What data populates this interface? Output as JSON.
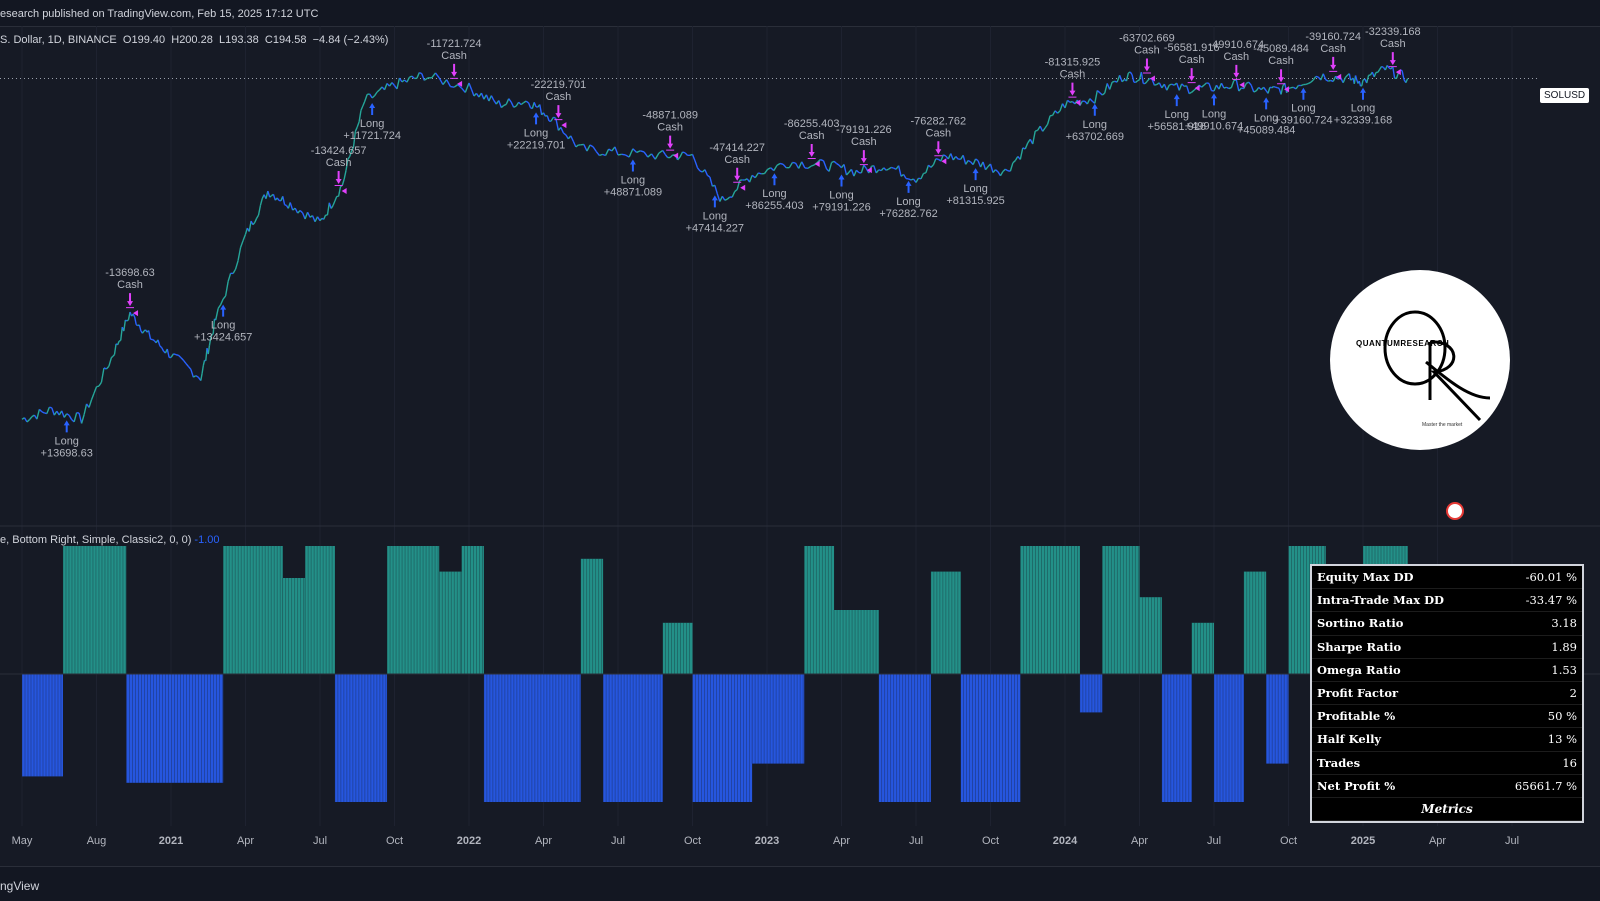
{
  "header": {
    "published": "esearch published on TradingView.com, Feb 15, 2025 17:12 UTC"
  },
  "legend": {
    "symbol": "S. Dollar, 1D, BINANCE",
    "open_label": "O",
    "open": "199.40",
    "high_label": "H",
    "high": "200.28",
    "low_label": "L",
    "low": "193.38",
    "close_label": "C",
    "close": "194.58",
    "change": "−4.84 (−2.43%)"
  },
  "indicator_legend": {
    "text": "e, Bottom Right, Simple, Classic2, 0, 0)",
    "value": "-1.00"
  },
  "price_tag": "SOLUSD",
  "logo": {
    "brand": "QUANTUMRESEARCH",
    "slogan": "Master the market"
  },
  "footer": {
    "brand": "ngView"
  },
  "colors": {
    "bg": "#161a25",
    "teal": "#26a69a",
    "blue": "#2962ff",
    "magenta": "#e040fb",
    "text": "#d1d4dc"
  },
  "icons": {
    "flag": "flag-icon",
    "logo": "quantum-research-logo"
  },
  "metrics": {
    "caption": "Metrics",
    "rows": [
      {
        "label": "Equity Max DD",
        "value": "-60.01 %"
      },
      {
        "label": "Intra-Trade Max DD",
        "value": "-33.47 %"
      },
      {
        "label": "Sortino Ratio",
        "value": "3.18"
      },
      {
        "label": "Sharpe Ratio",
        "value": "1.89"
      },
      {
        "label": "Omega Ratio",
        "value": "1.53"
      },
      {
        "label": "Profit Factor",
        "value": "2"
      },
      {
        "label": "Profitable %",
        "value": "50 %"
      },
      {
        "label": "Half Kelly",
        "value": "13 %"
      },
      {
        "label": "Trades",
        "value": "16"
      },
      {
        "label": "Net Profit %",
        "value": "65661.7 %"
      }
    ]
  },
  "chart_data": {
    "type": "line",
    "x_ticks": [
      {
        "label": "May",
        "bold": false
      },
      {
        "label": "Aug",
        "bold": false
      },
      {
        "label": "2021",
        "bold": true
      },
      {
        "label": "Apr",
        "bold": false
      },
      {
        "label": "Jul",
        "bold": false
      },
      {
        "label": "Oct",
        "bold": false
      },
      {
        "label": "2022",
        "bold": true
      },
      {
        "label": "Apr",
        "bold": false
      },
      {
        "label": "Jul",
        "bold": false
      },
      {
        "label": "Oct",
        "bold": false
      },
      {
        "label": "2023",
        "bold": true
      },
      {
        "label": "Apr",
        "bold": false
      },
      {
        "label": "Jul",
        "bold": false
      },
      {
        "label": "Oct",
        "bold": false
      },
      {
        "label": "2024",
        "bold": true
      },
      {
        "label": "Apr",
        "bold": false
      },
      {
        "label": "Jul",
        "bold": false
      },
      {
        "label": "Oct",
        "bold": false
      },
      {
        "label": "2025",
        "bold": true
      },
      {
        "label": "Apr",
        "bold": false
      },
      {
        "label": "Jul",
        "bold": false
      }
    ],
    "price_path": [
      {
        "t": 0.0,
        "v": 0.27
      },
      {
        "t": 0.4,
        "v": 0.3
      },
      {
        "t": 0.8,
        "v": 0.27
      },
      {
        "t": 1.2,
        "v": 0.46
      },
      {
        "t": 1.45,
        "v": 0.6
      },
      {
        "t": 1.7,
        "v": 0.53
      },
      {
        "t": 2.0,
        "v": 0.47
      },
      {
        "t": 2.4,
        "v": 0.4
      },
      {
        "t": 2.6,
        "v": 0.58
      },
      {
        "t": 3.0,
        "v": 0.84
      },
      {
        "t": 3.3,
        "v": 0.98
      },
      {
        "t": 3.6,
        "v": 0.94
      },
      {
        "t": 4.0,
        "v": 0.88
      },
      {
        "t": 4.3,
        "v": 1.0
      },
      {
        "t": 4.6,
        "v": 1.26
      },
      {
        "t": 5.0,
        "v": 1.31
      },
      {
        "t": 5.4,
        "v": 1.34
      },
      {
        "t": 6.0,
        "v": 1.3
      },
      {
        "t": 6.4,
        "v": 1.25
      },
      {
        "t": 6.8,
        "v": 1.26
      },
      {
        "t": 7.1,
        "v": 1.21
      },
      {
        "t": 7.5,
        "v": 1.11
      },
      {
        "t": 8.0,
        "v": 1.1
      },
      {
        "t": 8.6,
        "v": 1.09
      },
      {
        "t": 9.0,
        "v": 1.09
      },
      {
        "t": 9.4,
        "v": 0.95
      },
      {
        "t": 9.8,
        "v": 1.03
      },
      {
        "t": 10.3,
        "v": 1.07
      },
      {
        "t": 10.8,
        "v": 1.06
      },
      {
        "t": 11.2,
        "v": 1.04
      },
      {
        "t": 11.6,
        "v": 1.06
      },
      {
        "t": 12.0,
        "v": 1.02
      },
      {
        "t": 12.4,
        "v": 1.09
      },
      {
        "t": 12.8,
        "v": 1.07
      },
      {
        "t": 13.2,
        "v": 1.04
      },
      {
        "t": 13.6,
        "v": 1.15
      },
      {
        "t": 14.0,
        "v": 1.25
      },
      {
        "t": 14.4,
        "v": 1.27
      },
      {
        "t": 14.8,
        "v": 1.34
      },
      {
        "t": 15.1,
        "v": 1.33
      },
      {
        "t": 15.5,
        "v": 1.3
      },
      {
        "t": 15.9,
        "v": 1.3
      },
      {
        "t": 16.3,
        "v": 1.31
      },
      {
        "t": 16.7,
        "v": 1.29
      },
      {
        "t": 17.0,
        "v": 1.3
      },
      {
        "t": 17.4,
        "v": 1.34
      },
      {
        "t": 17.8,
        "v": 1.33
      },
      {
        "t": 18.0,
        "v": 1.32
      },
      {
        "t": 18.3,
        "v": 1.36
      },
      {
        "t": 18.6,
        "v": 1.33
      }
    ],
    "trades": [
      {
        "t": 0.6,
        "side": "long",
        "text": "Long",
        "value": "+13698.63"
      },
      {
        "t": 1.45,
        "side": "cash",
        "text": "Cash",
        "value": "-13698.63"
      },
      {
        "t": 2.7,
        "side": "long",
        "text": "Long",
        "value": "+13424.657"
      },
      {
        "t": 4.25,
        "side": "cash",
        "text": "Cash",
        "value": "-13424.657"
      },
      {
        "t": 4.7,
        "side": "long",
        "text": "Long",
        "value": "+11721.724"
      },
      {
        "t": 5.8,
        "side": "cash",
        "text": "Cash",
        "value": "-11721.724"
      },
      {
        "t": 6.9,
        "side": "long",
        "text": "Long",
        "value": "+22219.701"
      },
      {
        "t": 7.2,
        "side": "cash",
        "text": "Cash",
        "value": "-22219.701"
      },
      {
        "t": 8.2,
        "side": "long",
        "text": "Long",
        "value": "+48871.089"
      },
      {
        "t": 8.7,
        "side": "cash",
        "text": "Cash",
        "value": "-48871.089"
      },
      {
        "t": 9.3,
        "side": "long",
        "text": "Long",
        "value": "+47414.227"
      },
      {
        "t": 9.6,
        "side": "cash",
        "text": "Cash",
        "value": "-47414.227"
      },
      {
        "t": 10.1,
        "side": "long",
        "text": "Long",
        "value": "+86255.403"
      },
      {
        "t": 10.6,
        "side": "cash",
        "text": "Cash",
        "value": "-86255.403"
      },
      {
        "t": 11.0,
        "side": "long",
        "text": "Long",
        "value": "+79191.226"
      },
      {
        "t": 11.3,
        "side": "cash",
        "text": "Cash",
        "value": "-79191.226"
      },
      {
        "t": 11.9,
        "side": "long",
        "text": "Long",
        "value": "+76282.762"
      },
      {
        "t": 12.3,
        "side": "cash",
        "text": "Cash",
        "value": "-76282.762"
      },
      {
        "t": 12.8,
        "side": "long",
        "text": "Long",
        "value": "+81315.925"
      },
      {
        "t": 14.1,
        "side": "cash",
        "text": "Cash",
        "value": "-81315.925"
      },
      {
        "t": 14.4,
        "side": "long",
        "text": "Long",
        "value": "+63702.669"
      },
      {
        "t": 15.1,
        "side": "cash",
        "text": "Cash",
        "value": "-63702.669"
      },
      {
        "t": 15.5,
        "side": "long",
        "text": "Long",
        "value": "+56581.916"
      },
      {
        "t": 15.7,
        "side": "cash",
        "text": "Cash",
        "value": "-56581.916"
      },
      {
        "t": 16.0,
        "side": "long",
        "text": "Long",
        "value": "+49910.674"
      },
      {
        "t": 16.3,
        "side": "cash",
        "text": "Cash",
        "value": "-49910.674"
      },
      {
        "t": 16.7,
        "side": "long",
        "text": "Long",
        "value": "+45089.484"
      },
      {
        "t": 16.9,
        "side": "cash",
        "text": "Cash",
        "value": "-45089.484"
      },
      {
        "t": 17.2,
        "side": "long",
        "text": "Long",
        "value": "+39160.724"
      },
      {
        "t": 17.6,
        "side": "cash",
        "text": "Cash",
        "value": "-39160.724"
      },
      {
        "t": 18.0,
        "side": "long",
        "text": "Long",
        "value": "+32339.168"
      },
      {
        "t": 18.4,
        "side": "cash",
        "text": "Cash",
        "value": "-32339.168"
      }
    ],
    "signal_range": [
      -1,
      1
    ],
    "signal_blocks": [
      {
        "from": 0.0,
        "to": 0.55,
        "v": -0.8
      },
      {
        "from": 0.55,
        "to": 1.4,
        "v": 1.0
      },
      {
        "from": 1.4,
        "to": 2.7,
        "v": -0.85
      },
      {
        "from": 2.7,
        "to": 3.5,
        "v": 1.0
      },
      {
        "from": 3.5,
        "to": 3.8,
        "v": 0.75
      },
      {
        "from": 3.8,
        "to": 4.2,
        "v": 1.0
      },
      {
        "from": 4.2,
        "to": 4.9,
        "v": -1.0
      },
      {
        "from": 4.9,
        "to": 5.6,
        "v": 1.0
      },
      {
        "from": 5.6,
        "to": 5.9,
        "v": 0.8
      },
      {
        "from": 5.9,
        "to": 6.2,
        "v": 1.0
      },
      {
        "from": 6.2,
        "to": 7.5,
        "v": -1.0
      },
      {
        "from": 7.5,
        "to": 7.8,
        "v": 0.9
      },
      {
        "from": 7.8,
        "to": 8.6,
        "v": -1.0
      },
      {
        "from": 8.6,
        "to": 9.0,
        "v": 0.4
      },
      {
        "from": 9.0,
        "to": 9.8,
        "v": -1.0
      },
      {
        "from": 9.8,
        "to": 10.5,
        "v": -0.7
      },
      {
        "from": 10.5,
        "to": 10.9,
        "v": 1.0
      },
      {
        "from": 10.9,
        "to": 11.5,
        "v": 0.5
      },
      {
        "from": 11.5,
        "to": 12.2,
        "v": -1.0
      },
      {
        "from": 12.2,
        "to": 12.6,
        "v": 0.8
      },
      {
        "from": 12.6,
        "to": 13.4,
        "v": -1.0
      },
      {
        "from": 13.4,
        "to": 14.2,
        "v": 1.0
      },
      {
        "from": 14.2,
        "to": 14.5,
        "v": -0.3
      },
      {
        "from": 14.5,
        "to": 15.0,
        "v": 1.0
      },
      {
        "from": 15.0,
        "to": 15.3,
        "v": 0.6
      },
      {
        "from": 15.3,
        "to": 15.7,
        "v": -1.0
      },
      {
        "from": 15.7,
        "to": 16.0,
        "v": 0.4
      },
      {
        "from": 16.0,
        "to": 16.4,
        "v": -1.0
      },
      {
        "from": 16.4,
        "to": 16.7,
        "v": 0.8
      },
      {
        "from": 16.7,
        "to": 17.0,
        "v": -0.7
      },
      {
        "from": 17.0,
        "to": 17.5,
        "v": 1.0
      },
      {
        "from": 17.5,
        "to": 18.0,
        "v": -0.5
      },
      {
        "from": 18.0,
        "to": 18.6,
        "v": 1.0
      }
    ]
  }
}
